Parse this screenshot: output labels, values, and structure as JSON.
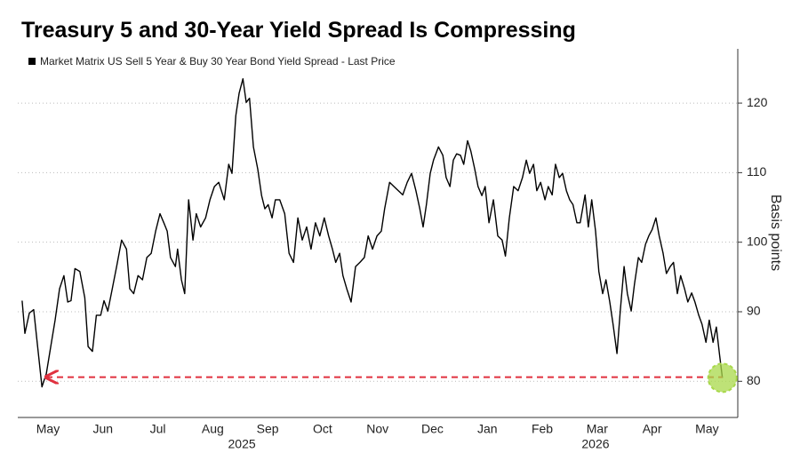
{
  "chart_data": {
    "type": "line",
    "title": "Treasury 5 and 30-Year Yield Spread Is Compressing",
    "y_axis_label": "Basis points",
    "x": [
      0.03,
      0.08,
      0.16,
      0.24,
      0.32,
      0.39,
      0.47,
      0.55,
      0.63,
      0.71,
      0.79,
      0.86,
      0.92,
      0.99,
      1.08,
      1.17,
      1.23,
      1.31,
      1.38,
      1.46,
      1.52,
      1.59,
      1.67,
      1.75,
      1.84,
      1.93,
      1.99,
      2.06,
      2.14,
      2.22,
      2.3,
      2.38,
      2.46,
      2.54,
      2.61,
      2.67,
      2.73,
      2.82,
      2.86,
      2.93,
      2.99,
      3.06,
      3.14,
      3.2,
      3.28,
      3.37,
      3.45,
      3.53,
      3.61,
      3.71,
      3.79,
      3.85,
      3.92,
      3.98,
      4.05,
      4.11,
      4.17,
      4.24,
      4.32,
      4.39,
      4.45,
      4.51,
      4.58,
      4.64,
      4.72,
      4.81,
      4.89,
      4.97,
      5.05,
      5.13,
      5.21,
      5.29,
      5.37,
      5.45,
      5.53,
      5.61,
      5.68,
      5.74,
      5.81,
      5.87,
      5.94,
      6.02,
      6.1,
      6.18,
      6.26,
      6.33,
      6.41,
      6.49,
      6.57,
      6.63,
      6.72,
      6.8,
      6.88,
      6.96,
      7.04,
      7.12,
      7.2,
      7.27,
      7.33,
      7.39,
      7.46,
      7.52,
      7.61,
      7.69,
      7.75,
      7.82,
      7.88,
      7.94,
      8.01,
      8.07,
      8.14,
      8.2,
      8.27,
      8.33,
      8.4,
      8.46,
      8.53,
      8.61,
      8.69,
      8.77,
      8.83,
      8.9,
      8.98,
      9.06,
      9.14,
      9.21,
      9.27,
      9.34,
      9.4,
      9.47,
      9.55,
      9.61,
      9.68,
      9.74,
      9.81,
      9.87,
      9.94,
      10.0,
      10.06,
      10.13,
      10.19,
      10.28,
      10.34,
      10.4,
      10.47,
      10.53,
      10.6,
      10.66,
      10.73,
      10.79,
      10.86,
      10.92,
      10.99,
      11.05,
      11.12,
      11.18,
      11.25,
      11.31,
      11.38,
      11.44,
      11.5,
      11.57,
      11.63,
      11.7,
      11.76,
      11.83,
      11.89,
      11.96,
      12.02,
      12.09,
      12.15,
      12.22,
      12.28,
      12.35,
      12.41,
      12.48,
      12.54,
      12.61,
      12.67,
      12.73,
      12.78
    ],
    "series": [
      {
        "name": "Market Matrix US Sell 5 Year & Buy 30 Year Bond Yield Spread - Last Price",
        "color": "#000000",
        "values": [
          91.6,
          86.9,
          89.8,
          90.3,
          84.3,
          79.2,
          81.1,
          85.0,
          88.8,
          93.3,
          95.2,
          91.4,
          91.6,
          96.2,
          95.8,
          92.0,
          85.0,
          84.3,
          89.5,
          89.5,
          91.6,
          90.1,
          93.3,
          96.5,
          100.3,
          99.0,
          93.3,
          92.6,
          95.2,
          94.6,
          97.8,
          98.4,
          101.6,
          104.1,
          102.8,
          101.6,
          97.8,
          96.5,
          99.0,
          94.6,
          92.6,
          106.1,
          100.3,
          104.1,
          102.2,
          103.5,
          106.1,
          108.0,
          108.6,
          106.1,
          111.2,
          109.9,
          118.2,
          121.4,
          123.5,
          120.1,
          120.7,
          113.7,
          110.5,
          106.7,
          104.8,
          105.4,
          103.5,
          106.1,
          106.1,
          104.1,
          98.4,
          97.1,
          103.5,
          100.3,
          102.2,
          99.0,
          102.8,
          100.9,
          103.5,
          100.9,
          99.0,
          97.1,
          98.4,
          95.2,
          93.3,
          91.4,
          96.5,
          97.1,
          97.8,
          100.9,
          99.0,
          100.9,
          101.6,
          104.8,
          108.6,
          108.0,
          107.4,
          106.8,
          108.6,
          109.9,
          107.4,
          104.8,
          102.2,
          105.4,
          109.9,
          111.8,
          113.7,
          112.5,
          109.3,
          108.0,
          111.8,
          112.7,
          112.5,
          111.2,
          114.6,
          113.1,
          110.5,
          108.0,
          106.7,
          108.0,
          102.8,
          106.1,
          100.9,
          100.3,
          98.0,
          103.5,
          108.0,
          107.4,
          109.3,
          111.8,
          109.9,
          111.2,
          107.4,
          108.6,
          106.1,
          108.0,
          106.8,
          111.2,
          109.3,
          109.9,
          107.4,
          106.1,
          105.4,
          102.8,
          102.8,
          106.8,
          102.2,
          106.1,
          101.6,
          95.8,
          92.6,
          94.6,
          91.4,
          88.2,
          84.0,
          90.1,
          96.5,
          92.6,
          90.1,
          94.0,
          97.8,
          97.1,
          99.7,
          100.9,
          101.8,
          103.5,
          100.9,
          98.4,
          95.5,
          96.5,
          97.1,
          92.6,
          95.2,
          93.3,
          91.4,
          92.7,
          91.4,
          89.5,
          88.2,
          85.6,
          88.8,
          85.6,
          87.8,
          83.7,
          80.5
        ]
      }
    ],
    "xlim": [
      -0.05,
      13.06
    ],
    "xticks": [
      {
        "value": 0.5,
        "label": "May"
      },
      {
        "value": 1.5,
        "label": "Jun"
      },
      {
        "value": 2.5,
        "label": "Jul"
      },
      {
        "value": 3.5,
        "label": "Aug"
      },
      {
        "value": 4.5,
        "label": "Sep"
      },
      {
        "value": 5.5,
        "label": "Oct"
      },
      {
        "value": 6.5,
        "label": "Nov"
      },
      {
        "value": 7.5,
        "label": "Dec"
      },
      {
        "value": 8.5,
        "label": "Jan"
      },
      {
        "value": 9.5,
        "label": "Feb"
      },
      {
        "value": 10.5,
        "label": "Mar"
      },
      {
        "value": 11.5,
        "label": "Apr"
      },
      {
        "value": 12.5,
        "label": "May"
      }
    ],
    "x_group_labels": [
      {
        "value": 4.03,
        "label": "2025"
      },
      {
        "value": 10.47,
        "label": "2026"
      }
    ],
    "ylim": [
      74.8,
      127.8
    ],
    "yticks": [
      80,
      90,
      100,
      110,
      120
    ],
    "grid": true,
    "reference_line": {
      "value": 80.6,
      "color": "#e0313f"
    },
    "highlight_color": "#a8d84a"
  }
}
